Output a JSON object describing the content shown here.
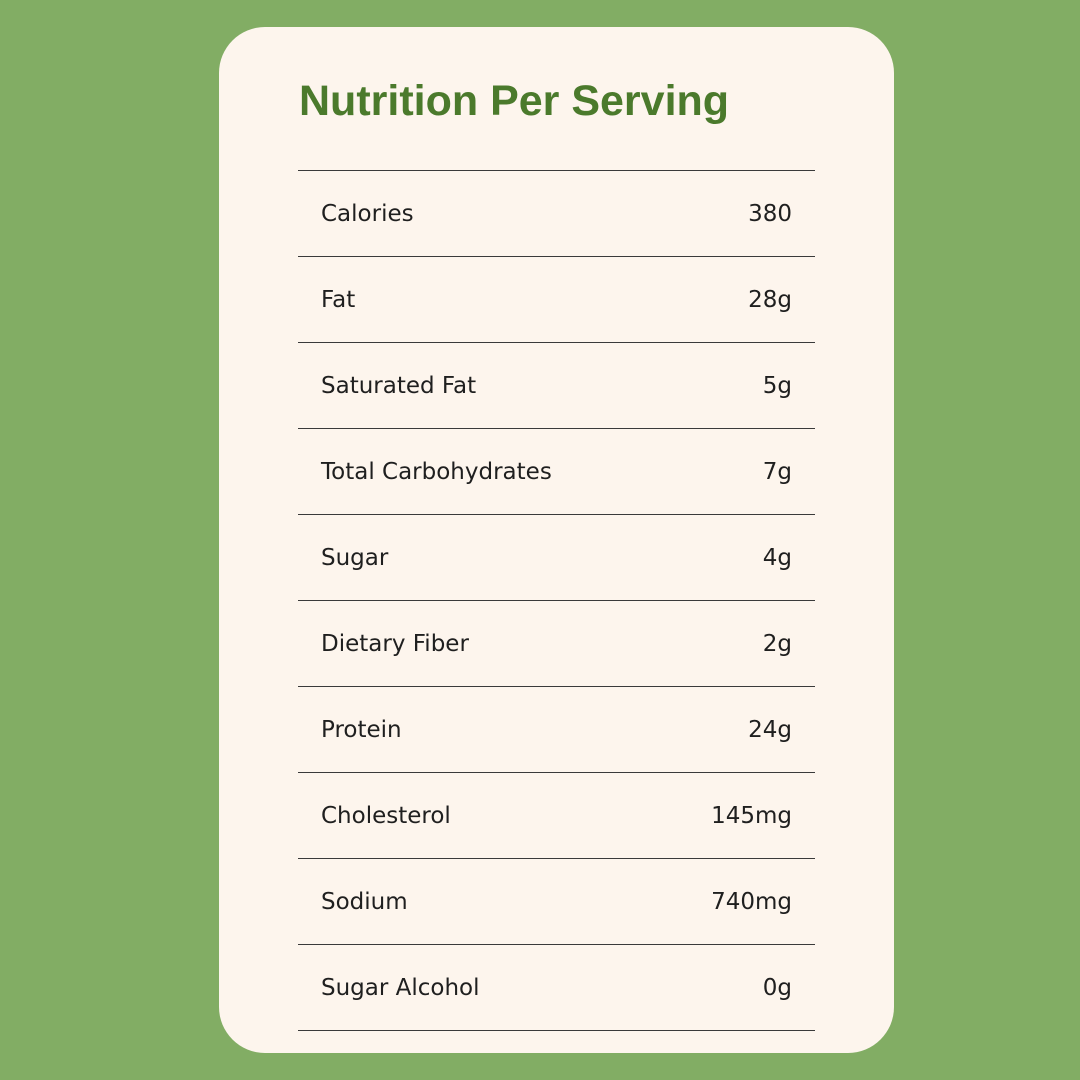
{
  "title": "Nutrition Per Serving",
  "colors": {
    "background": "#82ad64",
    "card": "#fdf5ed",
    "title": "#4b7a2c",
    "text": "#1f1f1f",
    "divider": "#3a3a3a"
  },
  "nutrients": [
    {
      "label": "Calories",
      "value": "380"
    },
    {
      "label": "Fat",
      "value": "28g"
    },
    {
      "label": "Saturated Fat",
      "value": "5g"
    },
    {
      "label": "Total Carbohydrates",
      "value": "7g"
    },
    {
      "label": "Sugar",
      "value": "4g"
    },
    {
      "label": "Dietary Fiber",
      "value": "2g"
    },
    {
      "label": "Protein",
      "value": "24g"
    },
    {
      "label": "Cholesterol",
      "value": "145mg"
    },
    {
      "label": "Sodium",
      "value": "740mg"
    },
    {
      "label": "Sugar Alcohol",
      "value": "0g"
    }
  ]
}
